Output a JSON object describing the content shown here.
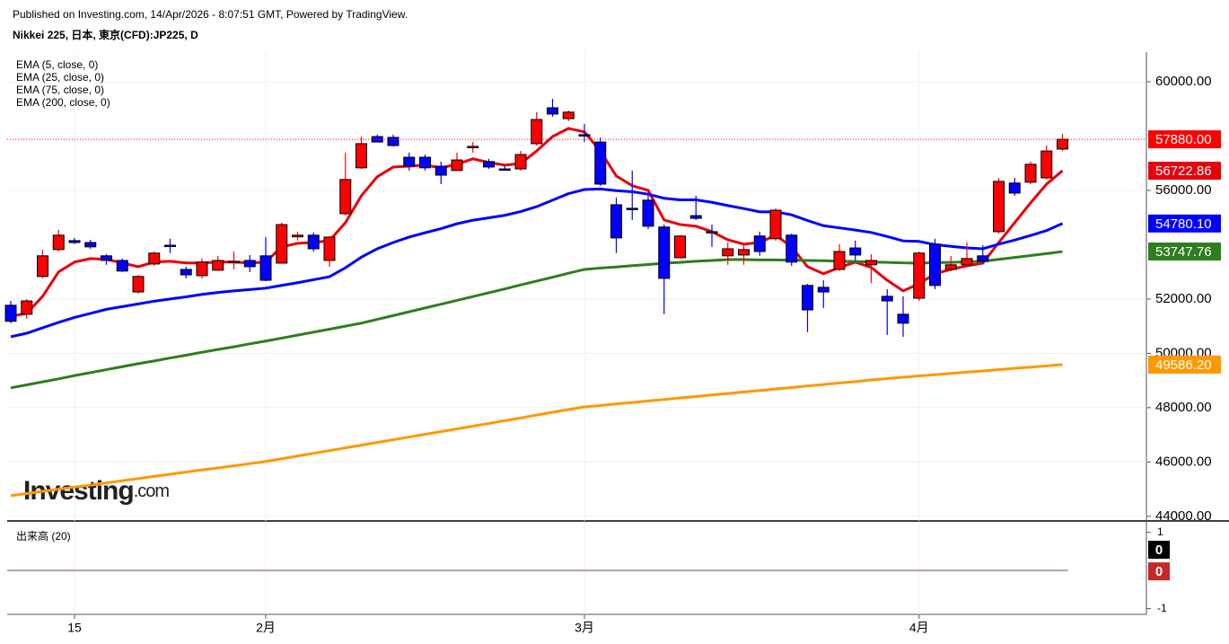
{
  "header": {
    "published": "Published on Investing.com, 14/Apr/2026 - 8:07:51 GMT, Powered by TradingView.",
    "symbol": "Nikkei 225, 日本, 東京(CFD):JP225, D"
  },
  "logo": {
    "name": "Investing",
    "suffix": ".com"
  },
  "chart_data": {
    "type": "candlestick",
    "categories": [
      null,
      null,
      null,
      null,
      "15",
      null,
      null,
      null,
      null,
      null,
      null,
      null,
      null,
      null,
      null,
      null,
      "2月",
      null,
      null,
      null,
      null,
      null,
      null,
      null,
      null,
      null,
      null,
      null,
      null,
      null,
      null,
      null,
      null,
      null,
      null,
      null,
      "3月",
      null,
      null,
      null,
      null,
      null,
      null,
      null,
      null,
      null,
      null,
      null,
      null,
      null,
      null,
      null,
      null,
      null,
      null,
      null,
      null,
      "4月",
      null,
      null,
      null,
      null,
      null,
      null,
      null,
      null,
      null
    ],
    "candles": {
      "open": [
        51770,
        51440,
        52830,
        53820,
        54150,
        54080,
        53590,
        53420,
        52260,
        53290,
        53980,
        53090,
        52860,
        53060,
        53360,
        53420,
        53590,
        53320,
        54290,
        54350,
        53420,
        55140,
        56830,
        57980,
        57950,
        57220,
        57220,
        56890,
        56730,
        57600,
        57060,
        56790,
        56790,
        57720,
        59040,
        58640,
        58050,
        57780,
        55470,
        55340,
        55640,
        54650,
        53520,
        55070,
        54480,
        53590,
        53620,
        54320,
        54220,
        54350,
        52500,
        52430,
        53090,
        53880,
        53260,
        52100,
        51440,
        52030,
        54020,
        53090,
        53260,
        53590,
        54480,
        56270,
        56300,
        56460,
        57520
      ],
      "high": [
        51930,
        52000,
        53820,
        54550,
        54250,
        54180,
        53650,
        53490,
        52890,
        53750,
        54220,
        53190,
        53490,
        53590,
        53750,
        53620,
        54280,
        54810,
        54480,
        54450,
        54320,
        57390,
        57980,
        58050,
        58050,
        57390,
        57320,
        57060,
        57390,
        57780,
        57160,
        56930,
        57450,
        58880,
        59370,
        58940,
        58450,
        57950,
        55740,
        56730,
        55900,
        54740,
        54350,
        55800,
        54740,
        54080,
        54050,
        54480,
        55340,
        54410,
        52560,
        52690,
        54020,
        54150,
        53650,
        52360,
        52100,
        53750,
        54220,
        53590,
        54080,
        53980,
        56460,
        56460,
        57060,
        57650,
        58080
      ],
      "low": [
        51110,
        51270,
        52760,
        53750,
        54020,
        53850,
        53260,
        52990,
        52200,
        53220,
        53690,
        52760,
        52760,
        53030,
        53090,
        52990,
        52660,
        53320,
        54150,
        53750,
        53190,
        55070,
        56790,
        57780,
        57620,
        56730,
        56730,
        56230,
        56730,
        57390,
        56790,
        56730,
        56730,
        57650,
        58710,
        58550,
        57780,
        56170,
        53690,
        54910,
        54580,
        51440,
        53520,
        54910,
        53920,
        53260,
        53260,
        53590,
        54150,
        53220,
        50780,
        51670,
        53030,
        53420,
        52590,
        50680,
        50610,
        51930,
        52360,
        53030,
        53220,
        53320,
        54410,
        55800,
        56230,
        56400,
        57450
      ],
      "close": [
        51180,
        51930,
        53590,
        54350,
        54080,
        53920,
        53420,
        53030,
        52830,
        53690,
        53950,
        52890,
        53360,
        53420,
        53390,
        53190,
        52690,
        54740,
        54350,
        53850,
        54280,
        56400,
        57720,
        57780,
        57650,
        56890,
        56830,
        56560,
        57120,
        57620,
        56860,
        56760,
        57320,
        58610,
        58810,
        58880,
        58020,
        56230,
        54250,
        55310,
        54680,
        52760,
        54320,
        54970,
        54450,
        53850,
        53820,
        53750,
        55270,
        53360,
        51600,
        52260,
        53750,
        53620,
        53420,
        51930,
        51110,
        53690,
        52500,
        53260,
        53490,
        53390,
        56330,
        55900,
        56960,
        57450,
        57880
      ]
    },
    "up_color": "#ff0000",
    "down_color": "#0000ff",
    "last_price_label": "57880.00",
    "last_price_color": "#ff0000",
    "series": [
      {
        "name": "EMA (5, close, 0)",
        "color": "#e8000b",
        "last_label": "56722.86",
        "values": [
          51370,
          51470,
          52100,
          53000,
          53360,
          53490,
          53460,
          53330,
          53190,
          53360,
          53390,
          53330,
          53330,
          53360,
          53360,
          53330,
          53360,
          53920,
          54050,
          54080,
          54150,
          54810,
          55800,
          56500,
          56860,
          56890,
          56930,
          56830,
          56960,
          57160,
          57030,
          56930,
          56990,
          57450,
          57980,
          58280,
          58150,
          57450,
          56530,
          56170,
          56000,
          54910,
          54740,
          54680,
          54480,
          54180,
          54020,
          54080,
          54350,
          53920,
          53190,
          52930,
          53160,
          53360,
          53160,
          52690,
          52300,
          52560,
          52930,
          53090,
          53220,
          53320,
          54080,
          54810,
          55540,
          56230,
          56722.86
        ]
      },
      {
        "name": "EMA (25, close, 0)",
        "color": "#0000ff",
        "last_label": "54780.10",
        "values": [
          50610,
          50740,
          50940,
          51140,
          51320,
          51470,
          51620,
          51720,
          51820,
          51920,
          52000,
          52080,
          52170,
          52240,
          52300,
          52350,
          52400,
          52500,
          52600,
          52710,
          52820,
          53150,
          53540,
          53850,
          54080,
          54280,
          54440,
          54590,
          54770,
          54900,
          54990,
          55080,
          55220,
          55400,
          55640,
          55880,
          56030,
          56050,
          55990,
          55950,
          55860,
          55710,
          55650,
          55650,
          55560,
          55440,
          55330,
          55210,
          55210,
          55100,
          54890,
          54700,
          54620,
          54540,
          54450,
          54300,
          54140,
          54120,
          54000,
          53940,
          53880,
          53850,
          54020,
          54170,
          54340,
          54520,
          54780.1
        ]
      },
      {
        "name": "EMA (75, close, 0)",
        "color": "#2e7d1e",
        "last_label": "53747.76",
        "values": [
          48730,
          48840,
          48950,
          49060,
          49180,
          49290,
          49400,
          49510,
          49620,
          49720,
          49830,
          49930,
          50040,
          50140,
          50240,
          50350,
          50450,
          50560,
          50670,
          50780,
          50890,
          51000,
          51110,
          51250,
          51390,
          51530,
          51670,
          51810,
          51950,
          52090,
          52230,
          52370,
          52520,
          52660,
          52800,
          52950,
          53090,
          53140,
          53180,
          53230,
          53270,
          53320,
          53350,
          53390,
          53420,
          53450,
          53450,
          53440,
          53440,
          53430,
          53420,
          53410,
          53390,
          53380,
          53360,
          53350,
          53330,
          53320,
          53340,
          53350,
          53370,
          53390,
          53460,
          53530,
          53600,
          53670,
          53747.76
        ]
      },
      {
        "name": "EMA (200, close, 0)",
        "color": "#ff9800",
        "last_label": "49586.20",
        "values": [
          44760,
          44840,
          44920,
          45000,
          45080,
          45150,
          45230,
          45310,
          45390,
          45470,
          45550,
          45630,
          45710,
          45780,
          45860,
          45940,
          46020,
          46120,
          46220,
          46320,
          46420,
          46520,
          46620,
          46720,
          46820,
          46920,
          47020,
          47120,
          47220,
          47320,
          47420,
          47520,
          47620,
          47730,
          47830,
          47930,
          48030,
          48080,
          48140,
          48190,
          48250,
          48300,
          48360,
          48410,
          48470,
          48520,
          48580,
          48630,
          48690,
          48740,
          48800,
          48850,
          48910,
          48960,
          49020,
          49070,
          49120,
          49170,
          49210,
          49260,
          49310,
          49350,
          49400,
          49450,
          49490,
          49540,
          49586.2
        ]
      }
    ],
    "ylim": [
      43830,
      61090
    ],
    "yticks": [
      {
        "value": 60000,
        "label": "60000.00"
      },
      {
        "value": 56000,
        "label": "56000.00"
      },
      {
        "value": 52000,
        "label": "52000.00"
      },
      {
        "value": 50000,
        "label": "50000.00"
      },
      {
        "value": 48000,
        "label": "48000.00"
      },
      {
        "value": 46000,
        "label": "46000.00"
      },
      {
        "value": 44000,
        "label": "44000.00"
      }
    ],
    "grid": true,
    "volume": {
      "title": "出来高 (20)",
      "ylim": [
        -1.15,
        1.25
      ],
      "yticks": [
        1,
        -1
      ],
      "values": [
        0,
        0
      ],
      "value_labels": [
        "0",
        "0"
      ],
      "label_colors": [
        "#000000",
        "#c62828"
      ]
    }
  }
}
